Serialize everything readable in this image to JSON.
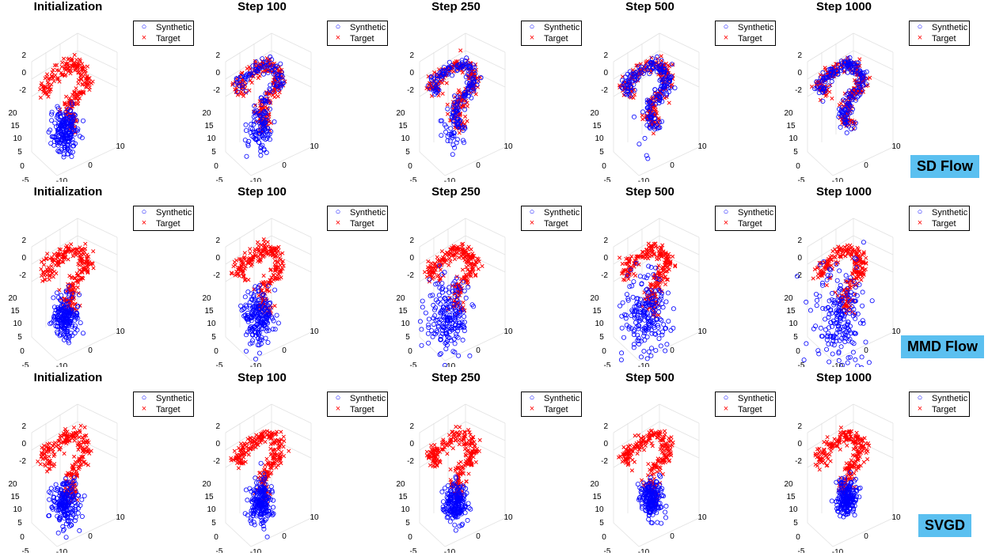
{
  "chart_data": {
    "type": "scatter",
    "legend": [
      "Synthetic",
      "Target"
    ],
    "legend_position": "top-right",
    "colors": {
      "synthetic": "#0000ff",
      "target": "#ff0000"
    },
    "grid": true,
    "axes": {
      "z_ticks": [
        "2",
        "0",
        "-2"
      ],
      "y_ticks": [
        "20",
        "15",
        "10",
        "5",
        "0",
        "-5"
      ],
      "x_ticks": [
        "-10",
        "0",
        "10"
      ]
    },
    "columns": [
      "Initialization",
      "Step 100",
      "Step 250",
      "Step 500",
      "Step 1000"
    ],
    "rows": [
      {
        "method": "SD Flow",
        "panels": [
          {
            "title": "Initialization",
            "synthetic_spread": 1.0,
            "synthetic_cx": 0.0,
            "synthetic_cy": 0.0,
            "coverage": 0.0
          },
          {
            "title": "Step 100",
            "synthetic_spread": 1.0,
            "synthetic_cx": 0.0,
            "synthetic_cy": 0.0,
            "coverage": 0.6
          },
          {
            "title": "Step 250",
            "synthetic_spread": 1.0,
            "synthetic_cx": 0.0,
            "synthetic_cy": 0.0,
            "coverage": 0.85
          },
          {
            "title": "Step 500",
            "synthetic_spread": 1.0,
            "synthetic_cx": 0.0,
            "synthetic_cy": 0.0,
            "coverage": 0.95
          },
          {
            "title": "Step 1000",
            "synthetic_spread": 1.0,
            "synthetic_cx": 0.0,
            "synthetic_cy": 0.0,
            "coverage": 1.0
          }
        ]
      },
      {
        "method": "MMD Flow",
        "panels": [
          {
            "title": "Initialization",
            "synthetic_spread": 1.0,
            "synthetic_cx": 0.0,
            "synthetic_cy": 0.0,
            "coverage": 0.0
          },
          {
            "title": "Step 100",
            "synthetic_spread": 1.25,
            "synthetic_cx": 0.0,
            "synthetic_cy": 0.0,
            "coverage": 0.0
          },
          {
            "title": "Step 250",
            "synthetic_spread": 1.6,
            "synthetic_cx": -0.1,
            "synthetic_cy": 0.0,
            "coverage": 0.0
          },
          {
            "title": "Step 500",
            "synthetic_spread": 1.9,
            "synthetic_cx": 0.0,
            "synthetic_cy": -0.05,
            "coverage": 0.0
          },
          {
            "title": "Step 1000",
            "synthetic_spread": 2.1,
            "synthetic_cx": 0.0,
            "synthetic_cy": -0.05,
            "coverage": 0.0
          }
        ]
      },
      {
        "method": "SVGD",
        "panels": [
          {
            "title": "Initialization",
            "synthetic_spread": 1.0,
            "synthetic_cx": 0.0,
            "synthetic_cy": 0.0,
            "coverage": 0.0
          },
          {
            "title": "Step 100",
            "synthetic_spread": 0.95,
            "synthetic_cx": 0.05,
            "synthetic_cy": -0.05,
            "coverage": 0.0
          },
          {
            "title": "Step 250",
            "synthetic_spread": 0.9,
            "synthetic_cx": 0.1,
            "synthetic_cy": -0.1,
            "coverage": 0.0
          },
          {
            "title": "Step 500",
            "synthetic_spread": 0.85,
            "synthetic_cx": 0.15,
            "synthetic_cy": -0.15,
            "coverage": 0.0
          },
          {
            "title": "Step 1000",
            "synthetic_spread": 0.8,
            "synthetic_cx": 0.2,
            "synthetic_cy": -0.2,
            "coverage": 0.0
          }
        ]
      }
    ]
  }
}
